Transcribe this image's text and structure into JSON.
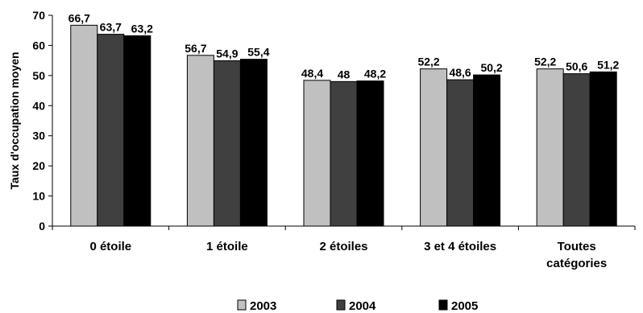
{
  "chart_data": {
    "type": "bar",
    "categories": [
      [
        "0 étoile"
      ],
      [
        "1 étoile"
      ],
      [
        "2 étoiles"
      ],
      [
        "3  et 4 étoiles"
      ],
      [
        "Toutes",
        "catégories"
      ]
    ],
    "series": [
      {
        "name": "2003",
        "color": "#c0c0c0",
        "values": [
          66.7,
          56.7,
          48.4,
          52.2,
          52.2
        ],
        "labels": [
          "66,7",
          "56,7",
          "48,4",
          "52,2",
          "52,2"
        ]
      },
      {
        "name": "2004",
        "color": "#404040",
        "values": [
          63.7,
          54.9,
          48.0,
          48.6,
          50.6
        ],
        "labels": [
          "63,7",
          "54,9",
          "48",
          "48,6",
          "50,6"
        ]
      },
      {
        "name": "2005",
        "color": "#000000",
        "values": [
          63.2,
          55.4,
          48.2,
          50.2,
          51.2
        ],
        "labels": [
          "63,2",
          "55,4",
          "48,2",
          "50,2",
          "51,2"
        ]
      }
    ],
    "ylabel": "Taux d'occupation moyen",
    "ylim": [
      0,
      70
    ],
    "yticks": [
      0,
      10,
      20,
      30,
      40,
      50,
      60,
      70
    ],
    "grid": false,
    "legend": "bottom"
  }
}
